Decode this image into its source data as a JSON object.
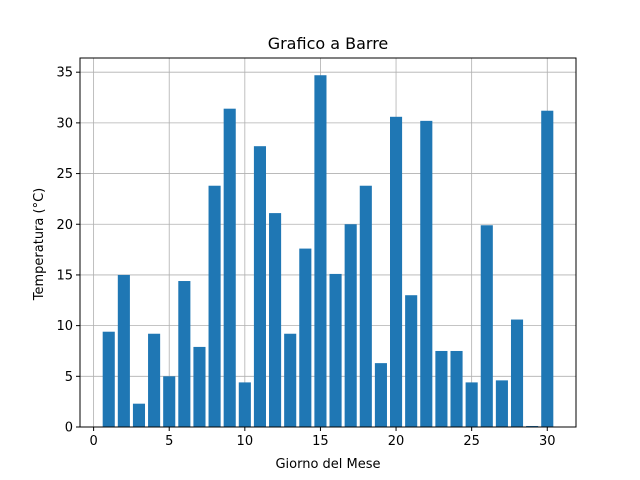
{
  "chart_data": {
    "type": "bar",
    "title": "Grafico a Barre",
    "xlabel": "Giorno del Mese",
    "ylabel": "Temperatura (°C)",
    "x": [
      1,
      2,
      3,
      4,
      5,
      6,
      7,
      8,
      9,
      10,
      11,
      12,
      13,
      14,
      15,
      16,
      17,
      18,
      19,
      20,
      21,
      22,
      23,
      24,
      25,
      26,
      27,
      28,
      29,
      30
    ],
    "values": [
      9.4,
      15.0,
      2.3,
      9.2,
      5.0,
      14.4,
      7.9,
      23.8,
      31.4,
      4.4,
      27.7,
      21.1,
      9.2,
      17.6,
      34.7,
      15.1,
      20.0,
      23.8,
      6.3,
      30.6,
      13.0,
      30.2,
      7.5,
      7.5,
      4.4,
      19.9,
      4.6,
      10.6,
      0.1,
      31.2
    ],
    "xlim": [
      -0.9,
      31.9
    ],
    "ylim": [
      0,
      36.4
    ],
    "xticks": [
      0,
      5,
      10,
      15,
      20,
      25,
      30
    ],
    "yticks": [
      0,
      5,
      10,
      15,
      20,
      25,
      30,
      35
    ],
    "grid": true,
    "bar_color": "#1f77b4"
  }
}
